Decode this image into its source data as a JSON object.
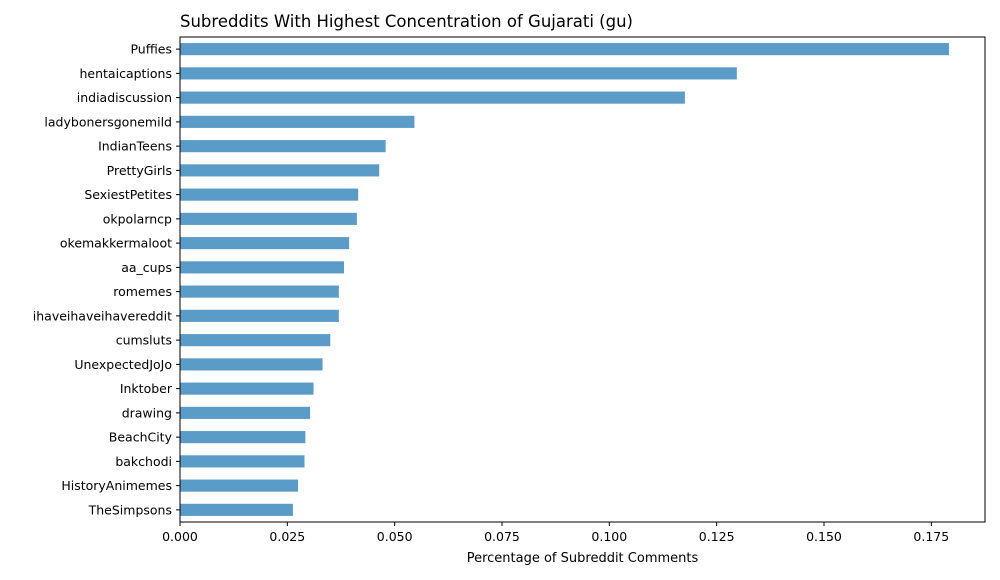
{
  "chart_data": {
    "type": "bar",
    "orientation": "horizontal",
    "title": "Subreddits With Highest Concentration of Gujarati (gu)",
    "xlabel": "Percentage of Subreddit Comments",
    "ylabel": "",
    "xlim": [
      0,
      0.1875
    ],
    "xticks": [
      "0.000",
      "0.025",
      "0.050",
      "0.075",
      "0.100",
      "0.125",
      "0.150",
      "0.175"
    ],
    "grid": false,
    "bar_color": "#5a9bc8",
    "categories": [
      "Puffies",
      "hentaicaptions",
      "indiadiscussion",
      "ladybonersgonemild",
      "IndianTeens",
      "PrettyGirls",
      "SexiestPetites",
      "okpolarncp",
      "okemakkermaloot",
      "aa_cups",
      "romemes",
      "ihaveihaveihavereddit",
      "cumsluts",
      "UnexpectedJoJo",
      "Inktober",
      "drawing",
      "BeachCity",
      "bakchodi",
      "HistoryAnimemes",
      "TheSimpsons"
    ],
    "values": [
      0.1791,
      0.1297,
      0.1176,
      0.0546,
      0.0479,
      0.0464,
      0.0415,
      0.0412,
      0.0394,
      0.0382,
      0.037,
      0.037,
      0.035,
      0.0332,
      0.0311,
      0.0303,
      0.0292,
      0.029,
      0.0275,
      0.0263
    ]
  }
}
